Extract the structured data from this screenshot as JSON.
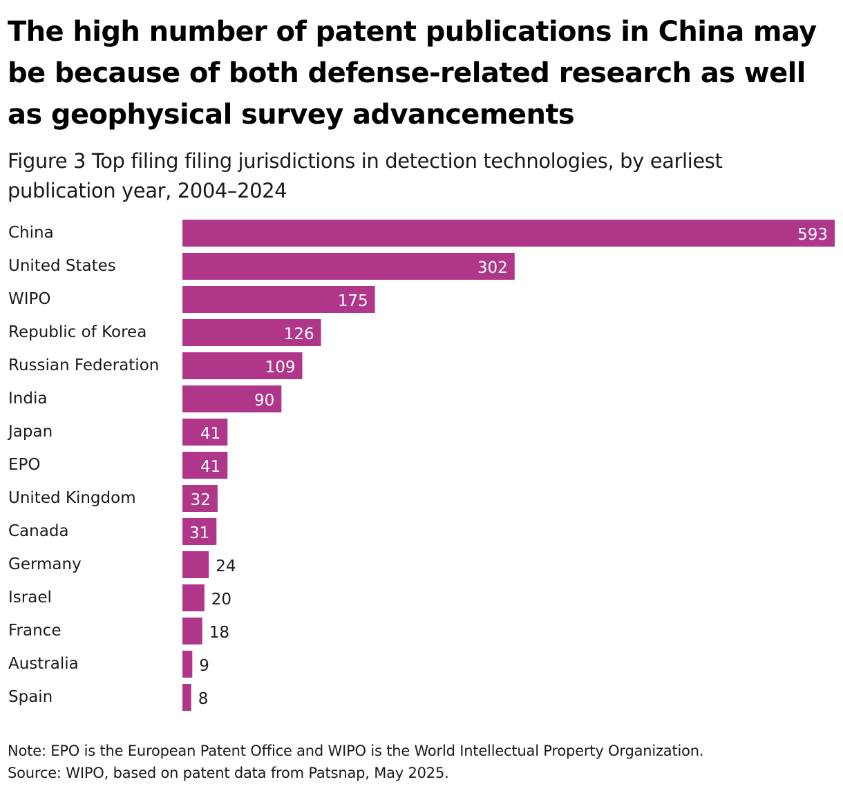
{
  "title": "The high number of patent publications in China may be because of both defense-related research as well as geophysical survey advancements",
  "subtitle": "Figure 3 Top filing filing jurisdictions in detection technologies, by earliest publication year, 2004–2024",
  "note": "Note: EPO is the European Patent Office and WIPO is the World Intellectual Property Organization.",
  "source": "Source: WIPO, based on patent data from Patsnap, May 2025.",
  "colors": {
    "bar": "#b0368a",
    "label_inside": "#ffffff",
    "label_outside": "#1a1a1a"
  },
  "chart_data": {
    "type": "bar",
    "orientation": "horizontal",
    "title": "The high number of patent publications in China may be because of both defense-related research as well as geophysical survey advancements",
    "subtitle": "Figure 3 Top filing filing jurisdictions in detection technologies, by earliest publication year, 2004–2024",
    "categories": [
      "China",
      "United States",
      "WIPO",
      "Republic of Korea",
      "Russian Federation",
      "India",
      "Japan",
      "EPO",
      "United Kingdom",
      "Canada",
      "Germany",
      "Israel",
      "France",
      "Australia",
      "Spain"
    ],
    "values": [
      593,
      302,
      175,
      126,
      109,
      90,
      41,
      41,
      32,
      31,
      24,
      20,
      18,
      9,
      8
    ],
    "xlabel": "",
    "ylabel": "",
    "xlim": [
      0,
      593
    ],
    "grid": false,
    "data_labels": true
  }
}
